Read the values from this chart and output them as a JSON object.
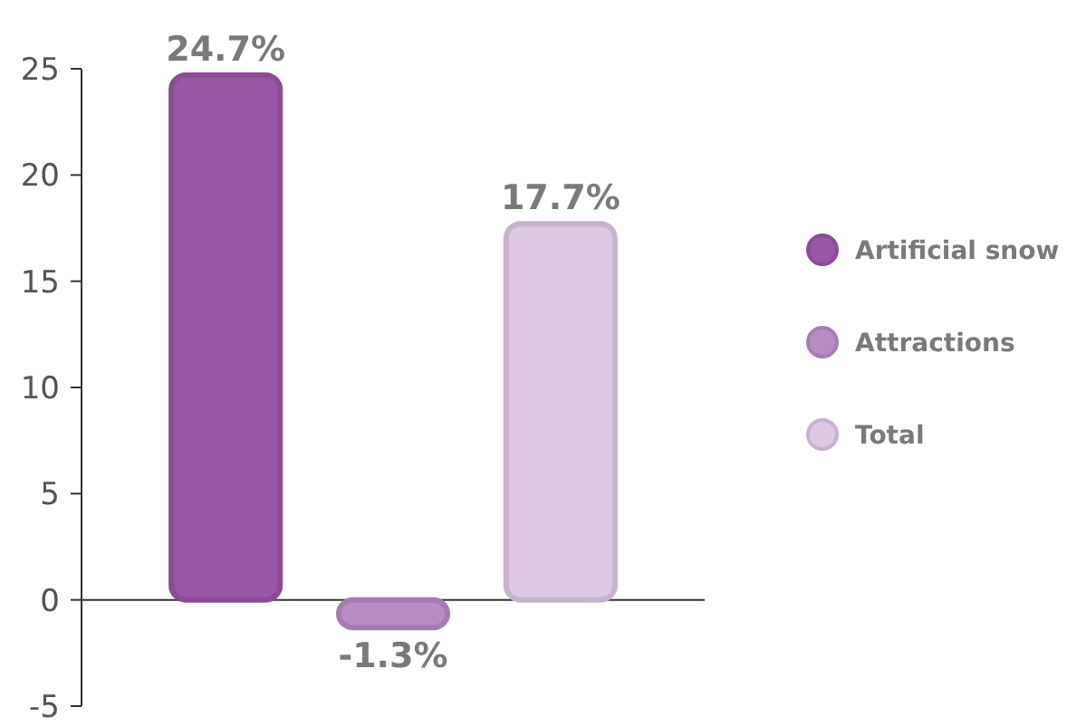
{
  "chart_data": {
    "type": "bar",
    "categories": [
      null
    ],
    "series": [
      {
        "name": "Artificial snow",
        "color": "#9b55a6",
        "values": [
          24.7
        ],
        "value_labels": [
          "24.7%"
        ]
      },
      {
        "name": "Attractions",
        "color": "#b98bc5",
        "values": [
          -1.3
        ],
        "value_labels": [
          "-1.3%"
        ]
      },
      {
        "name": "Total",
        "color": "#dcc8e4",
        "values": [
          17.7
        ],
        "value_labels": [
          "17.7%"
        ]
      }
    ],
    "ylim": [
      -5,
      25
    ],
    "yticks": [
      -5,
      0,
      5,
      10,
      15,
      20,
      25
    ],
    "legend": "right"
  }
}
